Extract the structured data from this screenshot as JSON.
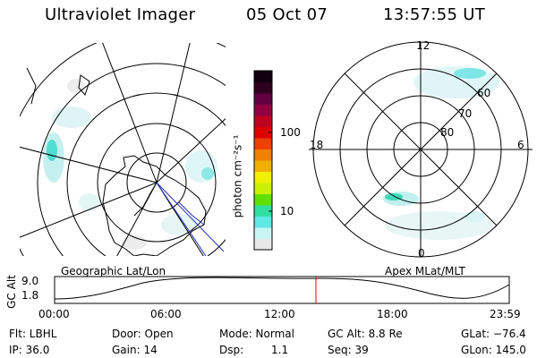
{
  "header": {
    "instrument": "Ultraviolet Imager",
    "date": "05 Oct 07",
    "time": "13:57:55 UT"
  },
  "left_panel": {
    "label": "Geographic Lat/Lon"
  },
  "right_panel": {
    "label": "Apex MLat/MLT",
    "mlt_labels": [
      "12",
      "18",
      "6",
      "0"
    ],
    "mlat_labels": [
      "60",
      "70",
      "80"
    ]
  },
  "colorbar": {
    "unit_label": "photon cm⁻²s⁻¹",
    "ticks": [
      "100",
      "10"
    ],
    "scale": "log",
    "colors": [
      "#e8e8e8",
      "#c8f4f4",
      "#60e8e8",
      "#30e0a0",
      "#60e000",
      "#c8f000",
      "#f0f000",
      "#f0b000",
      "#f08000",
      "#f04000",
      "#e00000",
      "#c00020",
      "#900040",
      "#600040",
      "#300020",
      "#100010"
    ]
  },
  "timeline": {
    "axis_title": "GC Alt",
    "y_ticks": [
      "9.0",
      "1.8"
    ],
    "x_ticks": [
      "00:00",
      "06:00",
      "12:00",
      "18:00",
      "23:59"
    ],
    "current_marker_color": "#e00000"
  },
  "info": {
    "filter": "Flt: LBHL",
    "ip": "IP: 36.0",
    "door": "Door: Open",
    "gain": "Gain: 14",
    "mode": "Mode: Normal",
    "dsp_label": "Dsp:",
    "dsp_value": "1.1",
    "gc_alt": "GC Alt: 8.8 Re",
    "seq": "Seq: 39",
    "glat": "GLat: −76.4",
    "glon": "GLon: 145.0"
  }
}
